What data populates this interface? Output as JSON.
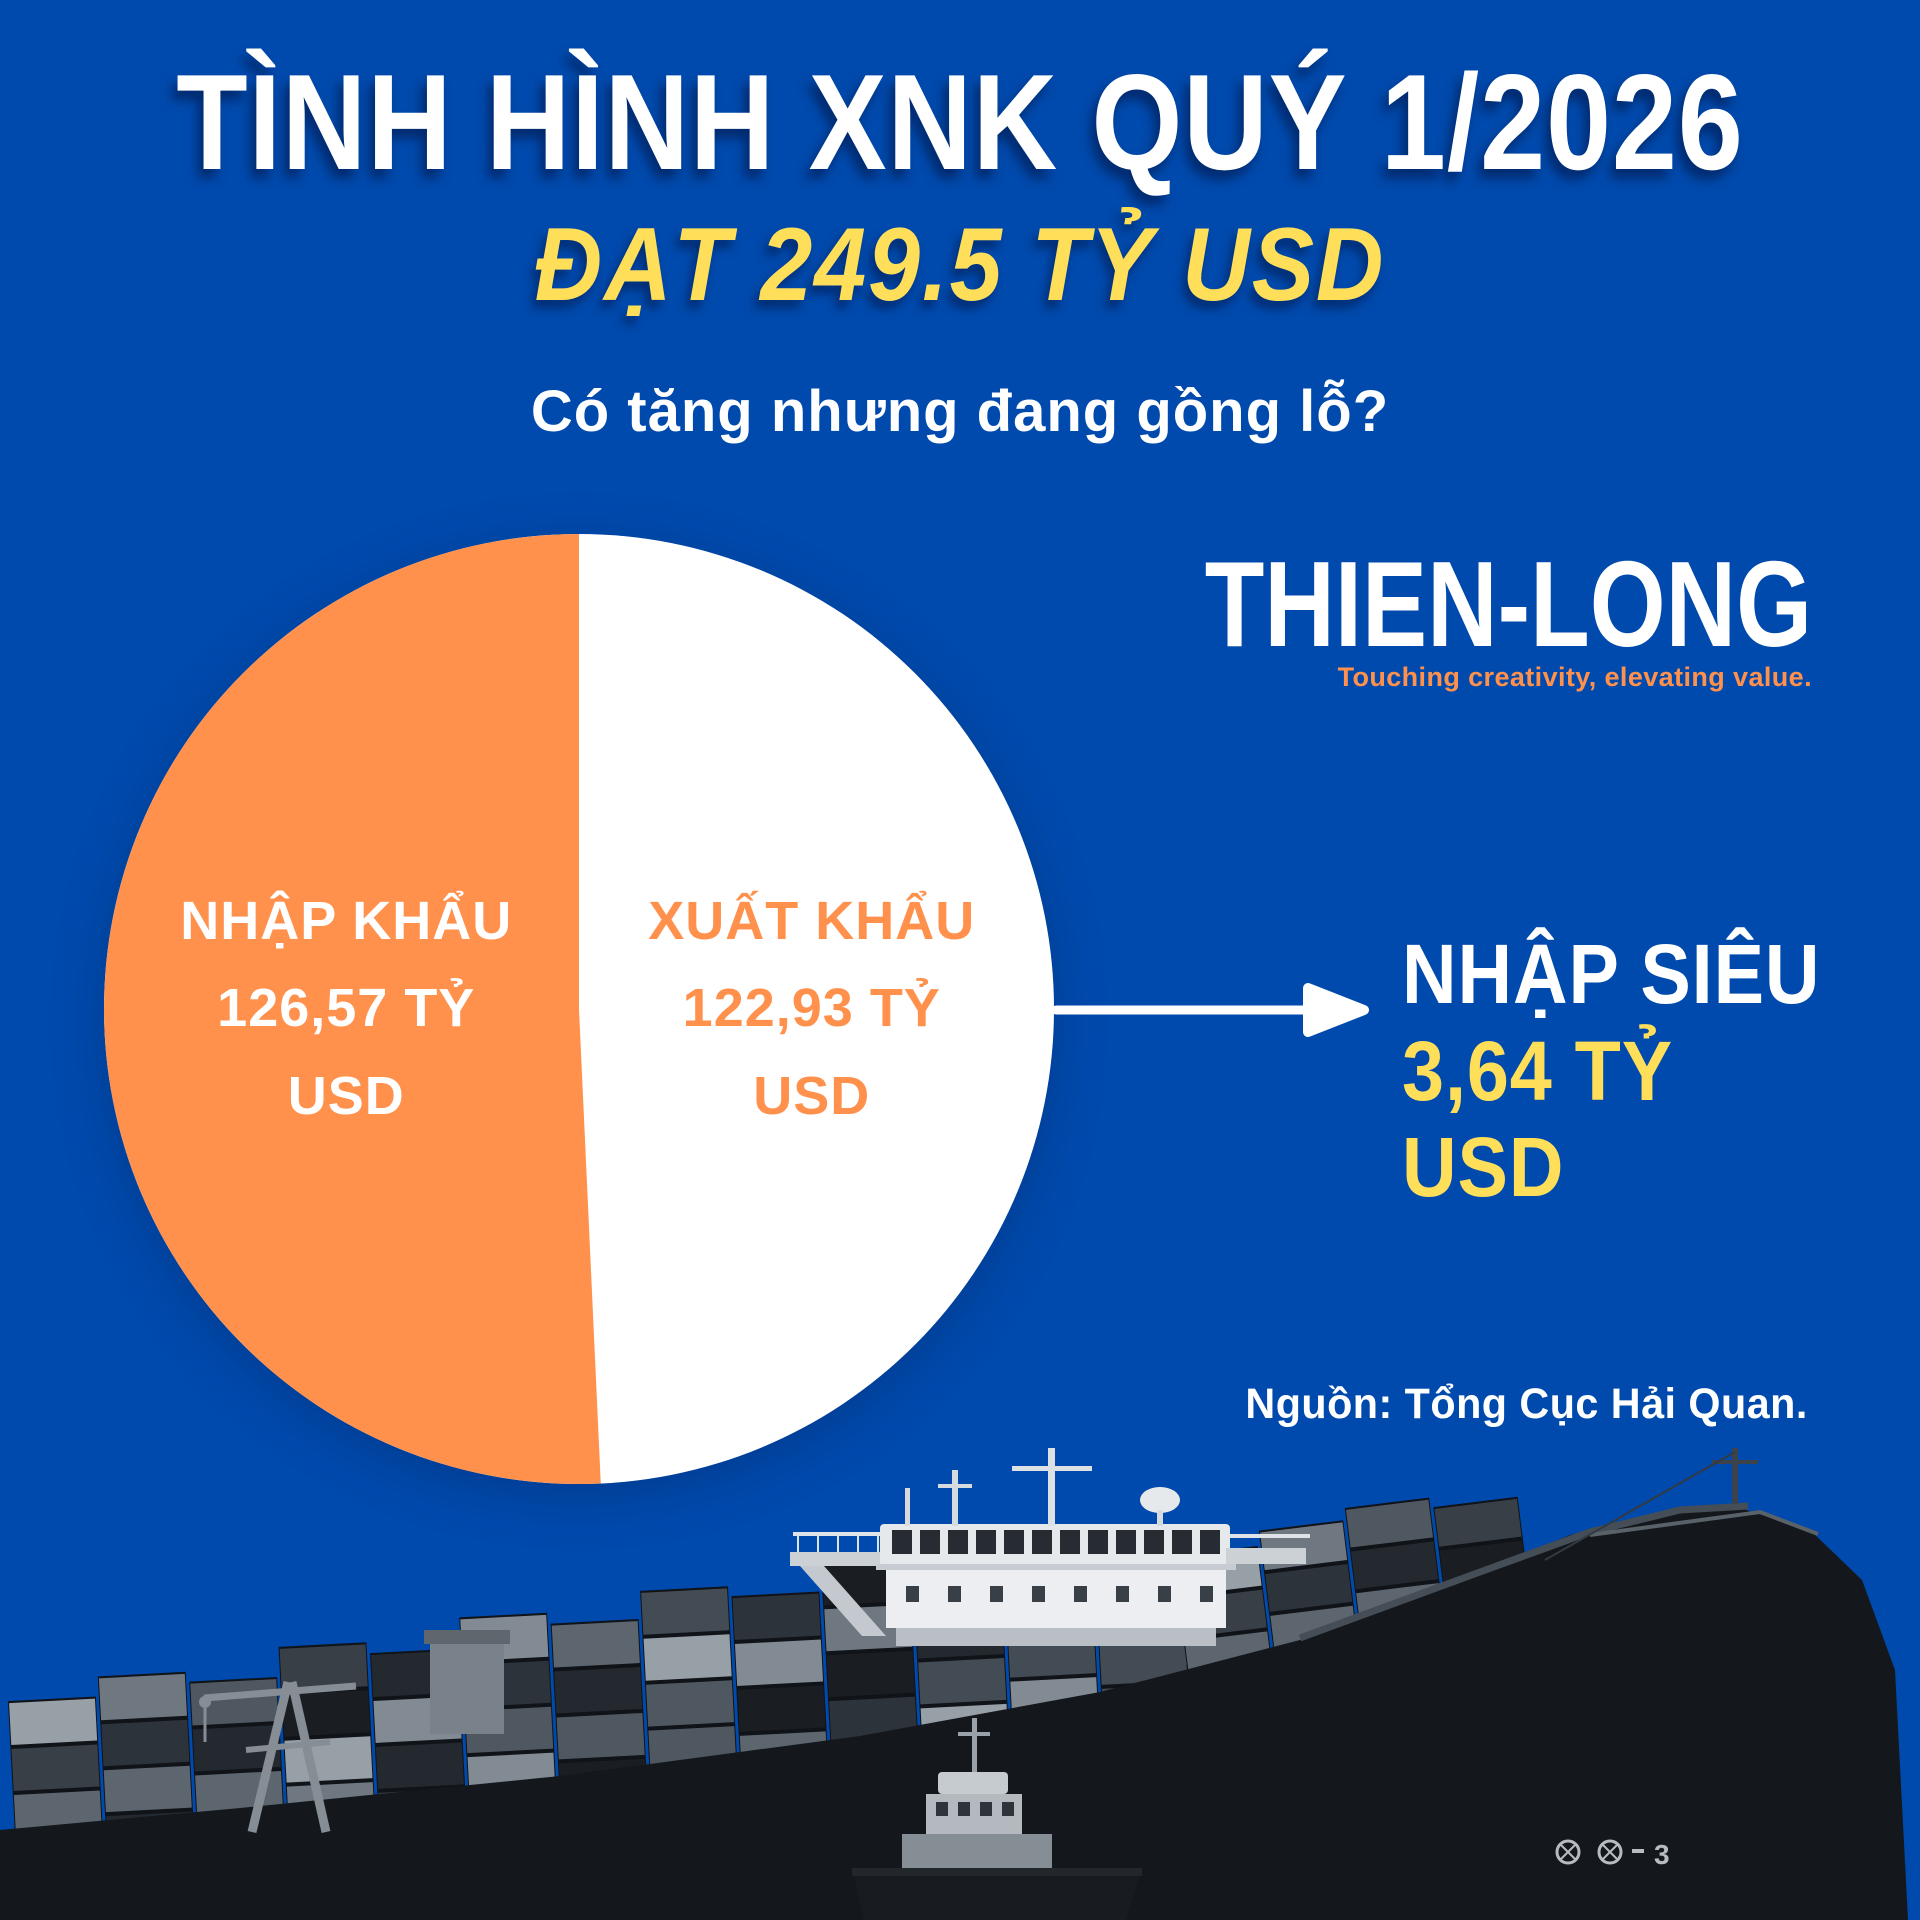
{
  "page": {
    "background_color": "#004AAD",
    "accent_orange": "#FF914D",
    "accent_yellow": "#FFDE59",
    "text_white": "#FFFFFF"
  },
  "header": {
    "title": "TÌNH HÌNH XNK QUÝ 1/2026",
    "subtitle": "ĐẠT 249.5 TỶ USD",
    "question": "Có tăng nhưng đang gồng lỗ?"
  },
  "brand": {
    "logo_text": "THIEN-LONG",
    "tagline": "Touching creativity, elevating value."
  },
  "chart_data": {
    "type": "pie",
    "title": "TÌNH HÌNH XNK QUÝ 1/2026",
    "unit": "TỶ USD",
    "total": 249.5,
    "legend_position": "inside",
    "slices": [
      {
        "label": "NHẬP KHẨU",
        "value": 126.57,
        "lines": [
          "NHẬP KHẨU",
          "126,57 TỶ",
          "USD"
        ],
        "color": "#FF914D",
        "text_color": "#FFFFFF"
      },
      {
        "label": "XUẤT KHẨU",
        "value": 122.93,
        "lines": [
          "XUẤT KHẨU",
          "122,93 TỶ",
          "USD"
        ],
        "color": "#FFFFFF",
        "text_color": "#FF914D"
      }
    ]
  },
  "callout": {
    "label": "NHẬP SIÊU",
    "value": "3,64 TỶ",
    "unit": "USD"
  },
  "source": {
    "text": "Nguồn: Tổng Cục Hải Quan."
  },
  "ship": {
    "hull_marking": "3"
  }
}
